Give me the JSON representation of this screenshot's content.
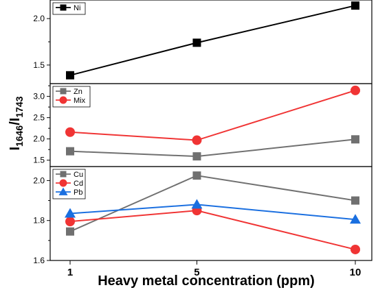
{
  "chart_data": [
    {
      "type": "line",
      "x": [
        1,
        5,
        10
      ],
      "ylim": [
        1.3,
        2.2
      ],
      "yticks": [
        1.5,
        2.0
      ],
      "tick_labels": [
        "1.5",
        "2.0"
      ],
      "legend_position": "top-left",
      "series": [
        {
          "name": "Ni",
          "values": [
            1.39,
            1.74,
            2.14
          ],
          "color": "#000000",
          "marker": "square"
        }
      ]
    },
    {
      "type": "line",
      "x": [
        1,
        5,
        10
      ],
      "ylim": [
        1.35,
        3.3
      ],
      "yticks": [
        1.5,
        2.0,
        2.5,
        3.0
      ],
      "tick_labels": [
        "1.5",
        "2.0",
        "2.5",
        "3.0"
      ],
      "legend_position": "top-left",
      "series": [
        {
          "name": "Zn",
          "values": [
            1.71,
            1.59,
            1.99
          ],
          "color": "#707070",
          "marker": "square"
        },
        {
          "name": "Mix",
          "values": [
            2.16,
            1.97,
            3.14
          ],
          "color": "#f03434",
          "marker": "circle"
        }
      ]
    },
    {
      "type": "line",
      "x": [
        1,
        5,
        10
      ],
      "ylim": [
        1.6,
        2.07
      ],
      "yticks": [
        1.6,
        1.8,
        2.0
      ],
      "tick_labels": [
        "1.6",
        "1.8",
        "2.0"
      ],
      "legend_position": "top-left",
      "series": [
        {
          "name": "Cu",
          "values": [
            1.745,
            2.025,
            1.9
          ],
          "color": "#707070",
          "marker": "square"
        },
        {
          "name": "Cd",
          "values": [
            1.795,
            1.85,
            1.655
          ],
          "color": "#f03434",
          "marker": "circle"
        },
        {
          "name": "Pb",
          "values": [
            1.835,
            1.88,
            1.805
          ],
          "color": "#1a6fe0",
          "marker": "triangle"
        }
      ]
    }
  ],
  "x_axis": {
    "ticks": [
      1,
      5,
      10
    ],
    "tick_labels": [
      "1",
      "5",
      "10"
    ],
    "label": "Heavy metal concentration (ppm)"
  },
  "y_axis": {
    "label_main": "I",
    "label_sub1": "1646",
    "label_sep": "/I",
    "label_sub2": "1743"
  }
}
